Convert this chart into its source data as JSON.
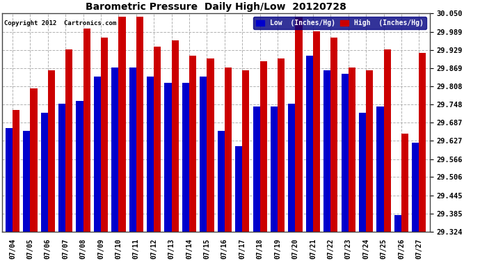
{
  "title": "Barometric Pressure  Daily High/Low  20120728",
  "copyright": "Copyright 2012  Cartronics.com",
  "dates": [
    "07/04",
    "07/05",
    "07/06",
    "07/07",
    "07/08",
    "07/09",
    "07/10",
    "07/11",
    "07/12",
    "07/13",
    "07/14",
    "07/15",
    "07/16",
    "07/17",
    "07/18",
    "07/19",
    "07/20",
    "07/21",
    "07/22",
    "07/23",
    "07/24",
    "07/25",
    "07/26",
    "07/27"
  ],
  "low_values": [
    29.67,
    29.66,
    29.72,
    29.75,
    29.76,
    29.84,
    29.87,
    29.87,
    29.84,
    29.82,
    29.82,
    29.84,
    29.66,
    29.61,
    29.74,
    29.74,
    29.75,
    29.91,
    29.86,
    29.85,
    29.72,
    29.74,
    29.38,
    29.62
  ],
  "high_values": [
    29.73,
    29.8,
    29.86,
    29.93,
    30.0,
    29.97,
    30.04,
    30.04,
    29.94,
    29.96,
    29.91,
    29.9,
    29.87,
    29.86,
    29.89,
    29.9,
    30.04,
    29.99,
    29.97,
    29.87,
    29.86,
    29.93,
    29.65,
    29.92
  ],
  "low_color": "#0000cc",
  "high_color": "#cc0000",
  "bg_color": "#ffffff",
  "grid_color": "#aaaaaa",
  "ymin": 29.324,
  "ymax": 30.05,
  "yticks": [
    29.324,
    29.385,
    29.445,
    29.506,
    29.566,
    29.627,
    29.687,
    29.748,
    29.808,
    29.869,
    29.929,
    29.989,
    30.05
  ],
  "legend_low_label": "Low  (Inches/Hg)",
  "legend_high_label": "High  (Inches/Hg)"
}
